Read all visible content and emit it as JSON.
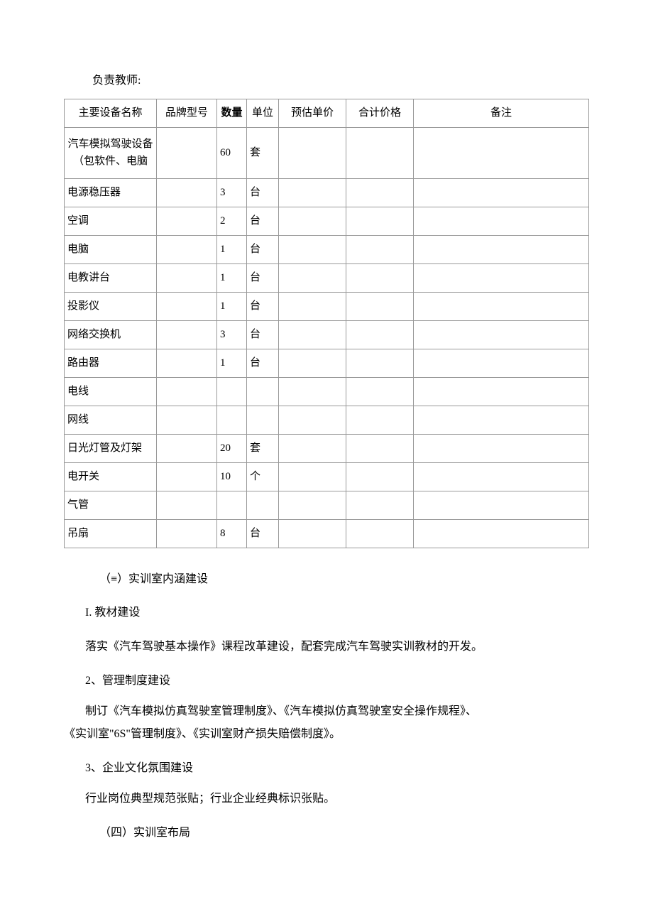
{
  "teacher_label": "负责教师:",
  "table": {
    "headers": {
      "name": "主要设备名称",
      "brand": "品牌型号",
      "qty": "数量",
      "unit": "单位",
      "price": "预估单价",
      "total": "合计价格",
      "remark": "备注"
    },
    "rows": [
      {
        "name": "汽车模拟驾驶设备（包软件、电脑",
        "brand": "",
        "qty": "60",
        "unit": "套",
        "price": "",
        "total": "",
        "remark": "",
        "tall": true
      },
      {
        "name": "电源稳压器",
        "brand": "",
        "qty": "3",
        "unit": "台",
        "price": "",
        "total": "",
        "remark": ""
      },
      {
        "name": "空调",
        "brand": "",
        "qty": "2",
        "unit": "台",
        "price": "",
        "total": "",
        "remark": ""
      },
      {
        "name": "电脑",
        "brand": "",
        "qty": "1",
        "unit": "台",
        "price": "",
        "total": "",
        "remark": ""
      },
      {
        "name": "电教讲台",
        "brand": "",
        "qty": "1",
        "unit": "台",
        "price": "",
        "total": "",
        "remark": ""
      },
      {
        "name": "投影仪",
        "brand": "",
        "qty": "1",
        "unit": "台",
        "price": "",
        "total": "",
        "remark": ""
      },
      {
        "name": "网络交换机",
        "brand": "",
        "qty": "3",
        "unit": "台",
        "price": "",
        "total": "",
        "remark": ""
      },
      {
        "name": "路由器",
        "brand": "",
        "qty": "1",
        "unit": "台",
        "price": "",
        "total": "",
        "remark": ""
      },
      {
        "name": "电线",
        "brand": "",
        "qty": "",
        "unit": "",
        "price": "",
        "total": "",
        "remark": ""
      },
      {
        "name": "网线",
        "brand": "",
        "qty": "",
        "unit": "",
        "price": "",
        "total": "",
        "remark": ""
      },
      {
        "name": "日光灯管及灯架",
        "brand": "",
        "qty": "20",
        "unit": "套",
        "price": "",
        "total": "",
        "remark": ""
      },
      {
        "name": "电开关",
        "brand": "",
        "qty": "10",
        "unit": "个",
        "price": "",
        "total": "",
        "remark": ""
      },
      {
        "name": "气管",
        "brand": "",
        "qty": "",
        "unit": "",
        "price": "",
        "total": "",
        "remark": ""
      },
      {
        "name": "吊扇",
        "brand": "",
        "qty": "8",
        "unit": "台",
        "price": "",
        "total": "",
        "remark": ""
      }
    ]
  },
  "sections": {
    "s3_title": "（≡）实训室内涵建设",
    "s3_1_title": "I. 教材建设",
    "s3_1_text": "落实《汽车驾驶基本操作》课程改革建设，配套完成汽车驾驶实训教材的开发。",
    "s3_2_title": "2、管理制度建设",
    "s3_2_text_line1": "制订《汽车模拟仿真驾驶室管理制度》、《汽车模拟仿真驾驶室安全操作规程》、",
    "s3_2_text_line2": "《实训室\"6S\"管理制度》、《实训室财产损失赔偿制度》。",
    "s3_3_title": "3、企业文化氛围建设",
    "s3_3_text": "行业岗位典型规范张贴；行业企业经典标识张贴。",
    "s4_title": "（四）实训室布局"
  }
}
